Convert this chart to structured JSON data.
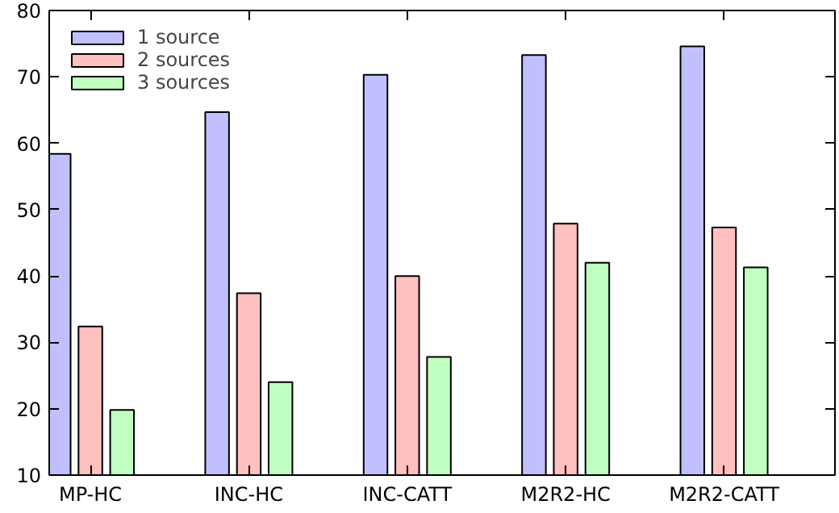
{
  "chart_data": {
    "type": "bar",
    "categories": [
      "MP-HC",
      "INC-HC",
      "INC-CATT",
      "M2R2-HC",
      "M2R2-CATT"
    ],
    "series": [
      {
        "name": "1 source",
        "color": "#c0c0ff",
        "values": [
          58.4,
          64.7,
          70.3,
          73.3,
          74.6
        ]
      },
      {
        "name": "2 sources",
        "color": "#ffc0c0",
        "values": [
          32.4,
          37.4,
          40.0,
          47.9,
          47.3
        ]
      },
      {
        "name": "3 sources",
        "color": "#c0ffc0",
        "values": [
          19.8,
          24.0,
          27.8,
          42.0,
          41.3
        ]
      }
    ],
    "ylim": [
      10,
      80
    ],
    "yticks": [
      10,
      20,
      30,
      40,
      50,
      60,
      70,
      80
    ],
    "grid": false,
    "legend": "top left"
  }
}
